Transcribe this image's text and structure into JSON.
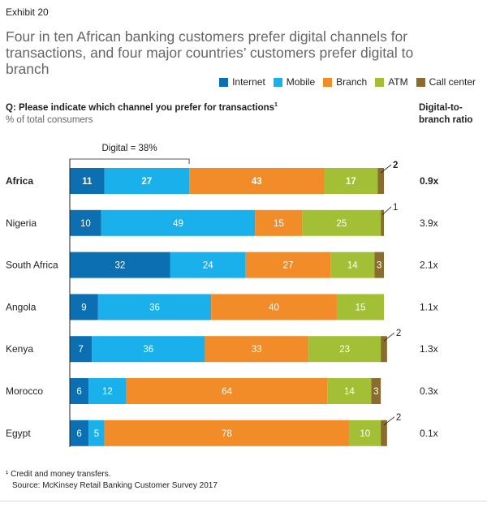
{
  "exhibit": "Exhibit 20",
  "title": "Four in ten African banking customers prefer digital channels for transactions, and four major countries’ customers prefer digital to branch",
  "question": "Q: Please indicate which channel you prefer for transactions",
  "question_footnote_mark": "1",
  "subtitle": "% of total consumers",
  "ratio_header": "Digital-to-branch ratio",
  "digital_bracket_label": "Digital = 38%",
  "footnote": "¹ Credit and money transfers.",
  "source": "Source: McKinsey Retail Banking Customer Survey 2017",
  "colors": {
    "Internet": "#0b6fb2",
    "Mobile": "#1ab0ec",
    "Branch": "#f28c28",
    "ATM": "#a3bf36",
    "Call center": "#8a6d2e"
  },
  "chart_data": {
    "type": "bar",
    "orientation": "horizontal",
    "stacked": true,
    "xlim": [
      0,
      100
    ],
    "categories": [
      "Africa",
      "Nigeria",
      "South Africa",
      "Angola",
      "Kenya",
      "Morocco",
      "Egypt"
    ],
    "series": [
      {
        "name": "Internet",
        "values": [
          11,
          10,
          32,
          9,
          7,
          6,
          6
        ]
      },
      {
        "name": "Mobile",
        "values": [
          27,
          49,
          24,
          36,
          36,
          12,
          5
        ]
      },
      {
        "name": "Branch",
        "values": [
          43,
          15,
          27,
          40,
          33,
          64,
          78
        ]
      },
      {
        "name": "ATM",
        "values": [
          17,
          25,
          14,
          15,
          23,
          14,
          10
        ]
      },
      {
        "name": "Call center",
        "values": [
          2,
          1,
          3,
          0,
          2,
          3,
          2
        ]
      }
    ],
    "digital_to_branch_ratio": [
      "0.9x",
      "3.9x",
      "2.1x",
      "1.1x",
      "1.3x",
      "0.3x",
      "0.1x"
    ],
    "legend_position": "top-right",
    "grid": false
  }
}
